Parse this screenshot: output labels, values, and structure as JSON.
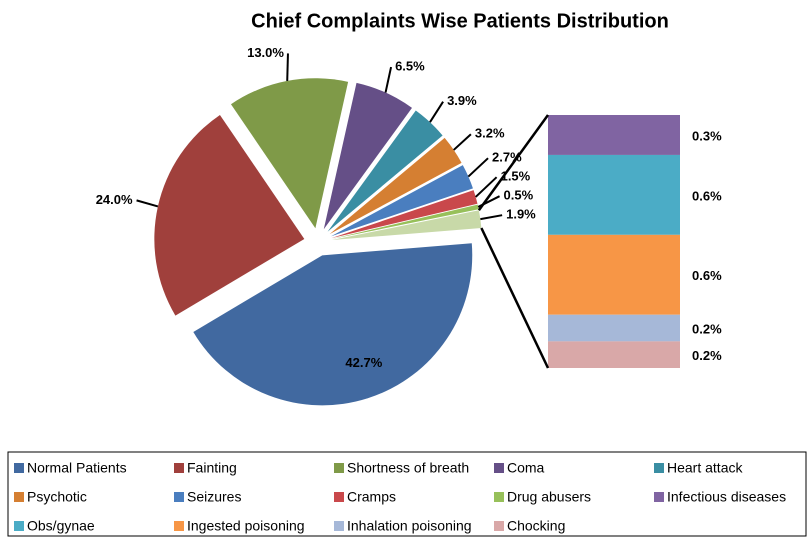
{
  "chart_data": {
    "type": "pie-of-bar",
    "title": "Chief Complaints Wise Patients  Distribution",
    "categories": [
      "Normal Patients",
      "Fainting",
      "Shortness of breath",
      "Coma",
      "Heart attack",
      "Psychotic",
      "Seizures",
      "Cramps",
      "Drug abusers",
      null
    ],
    "values": [
      42.7,
      24.0,
      13.0,
      6.5,
      3.9,
      3.2,
      2.7,
      1.5,
      0.5,
      1.9
    ],
    "value_labels": [
      "42.7%",
      "24.0%",
      "13.0%",
      "6.5%",
      "3.9%",
      "3.2%",
      "2.7%",
      "1.5%",
      "0.5%",
      "1.9%"
    ],
    "colors": [
      "#4169a0",
      "#a0403c",
      "#7f9a48",
      "#654f87",
      "#3a8ea3",
      "#d57f32",
      "#4a7ebf",
      "#c9484b",
      "#97c05a",
      "#c8d9a8"
    ],
    "bar": {
      "categories": [
        "Infectious diseases",
        "Obs/gynae",
        "Ingested poisoning",
        "Inhalation poisoning",
        "Chocking"
      ],
      "values": [
        0.3,
        0.6,
        0.6,
        0.2,
        0.2
      ],
      "value_labels": [
        "0.3%",
        "0.6%",
        "0.6%",
        "0.2%",
        "0.2%"
      ],
      "colors": [
        "#8064a2",
        "#4bacc6",
        "#f79646",
        "#a6b8d8",
        "#d9a8a8"
      ]
    }
  }
}
